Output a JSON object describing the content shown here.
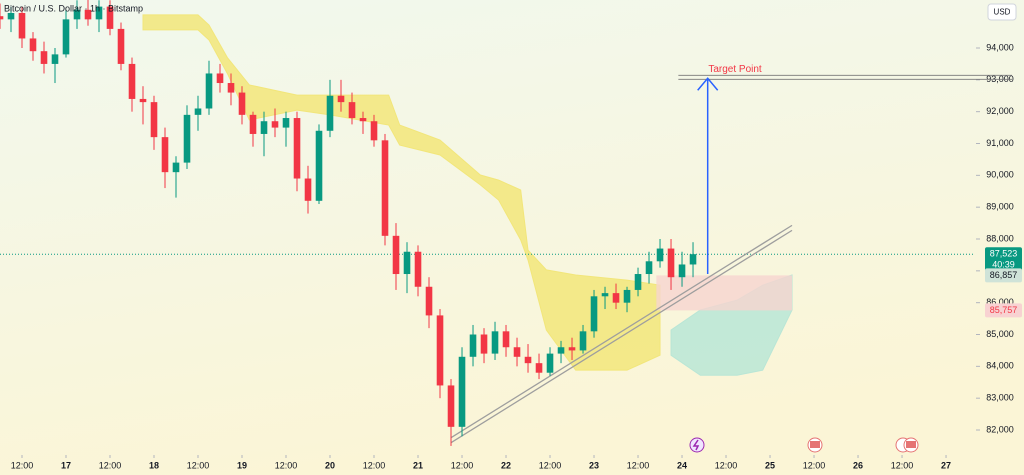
{
  "chart_data": {
    "type": "candlestick",
    "title": "Bitcoin / U.S. Dollar · 1h · Bitstamp",
    "currency": "USD",
    "xlim": [
      6,
      271.9
    ],
    "xticks": [
      {
        "value": 12,
        "label": "12:00"
      },
      {
        "value": 24,
        "label": "17"
      },
      {
        "value": 36,
        "label": "12:00"
      },
      {
        "value": 48,
        "label": "18"
      },
      {
        "value": 60,
        "label": "12:00"
      },
      {
        "value": 72,
        "label": "19"
      },
      {
        "value": 84,
        "label": "12:00"
      },
      {
        "value": 96,
        "label": "20"
      },
      {
        "value": 108,
        "label": "12:00"
      },
      {
        "value": 120,
        "label": "21"
      },
      {
        "value": 132,
        "label": "12:00"
      },
      {
        "value": 144,
        "label": "22"
      },
      {
        "value": 156,
        "label": "12:00"
      },
      {
        "value": 168,
        "label": "23"
      },
      {
        "value": 180,
        "label": "12:00"
      },
      {
        "value": 192,
        "label": "24"
      },
      {
        "value": 204,
        "label": "12:00"
      },
      {
        "value": 216,
        "label": "25"
      },
      {
        "value": 228,
        "label": "12:00"
      },
      {
        "value": 240,
        "label": "26"
      },
      {
        "value": 252,
        "label": "12:00"
      },
      {
        "value": 264,
        "label": "27"
      }
    ],
    "ylim": [
      81215,
      95508
    ],
    "yticks": [
      {
        "value": 82000,
        "label": "82,000"
      },
      {
        "value": 83000,
        "label": "83,000"
      },
      {
        "value": 84000,
        "label": "84,000"
      },
      {
        "value": 85000,
        "label": "85,000"
      },
      {
        "value": 86000,
        "label": "86,000"
      },
      {
        "value": 87000,
        "label": "87,000"
      },
      {
        "value": 88000,
        "label": "88,000"
      },
      {
        "value": 89000,
        "label": "89,000"
      },
      {
        "value": 90000,
        "label": "90,000"
      },
      {
        "value": 91000,
        "label": "91,000"
      },
      {
        "value": 92000,
        "label": "92,000"
      },
      {
        "value": 93000,
        "label": "93,000"
      },
      {
        "value": 94000,
        "label": "94,000"
      }
    ],
    "up_color": "#089981",
    "down_color": "#f23645",
    "candles": {
      "x": [
        6,
        9,
        12,
        15,
        18,
        21,
        24,
        27,
        30,
        33,
        36,
        39,
        42,
        45,
        48,
        51,
        54,
        57,
        60,
        63,
        66,
        69,
        72,
        75,
        78,
        81,
        84,
        87,
        90,
        93,
        96,
        99,
        102,
        105,
        108,
        111,
        114,
        117,
        120,
        123,
        126,
        129,
        132,
        135,
        138,
        141,
        144,
        147,
        150,
        153,
        156,
        159,
        162,
        165,
        168,
        171,
        174,
        177,
        180,
        183,
        186,
        189,
        192,
        195
      ],
      "open": [
        95000,
        94900,
        95100,
        94300,
        93900,
        93500,
        93800,
        94900,
        95200,
        94900,
        95300,
        94600,
        93500,
        92400,
        92300,
        91200,
        90100,
        90400,
        91900,
        92100,
        93200,
        92900,
        92600,
        91900,
        91300,
        91700,
        91500,
        91800,
        89900,
        89200,
        91400,
        92500,
        92300,
        91800,
        91700,
        91100,
        88100,
        86900,
        87600,
        86500,
        85600,
        83400,
        82100,
        84300,
        85000,
        84400,
        85100,
        84600,
        84300,
        84100,
        83800,
        84400,
        84600,
        84500,
        85100,
        86200,
        86300,
        86000,
        86400,
        86900,
        87300,
        87700,
        86800,
        87200
      ],
      "high": [
        95400,
        95300,
        95300,
        94500,
        94200,
        94000,
        95200,
        95500,
        95600,
        95500,
        95500,
        94800,
        93700,
        92800,
        92500,
        91500,
        90600,
        92200,
        92500,
        93600,
        93500,
        93200,
        92800,
        92000,
        92000,
        92100,
        92000,
        92000,
        90300,
        91600,
        93000,
        93000,
        92600,
        92000,
        91900,
        91300,
        88500,
        87900,
        87800,
        86800,
        85800,
        83600,
        84600,
        85300,
        85200,
        85400,
        85300,
        84900,
        84700,
        84400,
        84600,
        84800,
        84900,
        85300,
        86400,
        86500,
        86600,
        86500,
        87100,
        87600,
        88000,
        88000,
        87600,
        87900
      ],
      "low": [
        94600,
        94500,
        94000,
        93600,
        93200,
        92900,
        93700,
        94600,
        94700,
        94500,
        94400,
        93300,
        92000,
        91600,
        90800,
        89600,
        89300,
        90200,
        91400,
        91900,
        92600,
        92200,
        91600,
        90900,
        90600,
        91200,
        90900,
        89500,
        88800,
        89100,
        91200,
        92000,
        91600,
        91300,
        90900,
        87800,
        86400,
        86300,
        86200,
        85200,
        83000,
        81500,
        81800,
        84000,
        84100,
        84200,
        84300,
        84000,
        83800,
        83600,
        83700,
        84100,
        84200,
        84400,
        84900,
        85800,
        85800,
        85700,
        86200,
        86600,
        87100,
        86400,
        86500,
        86800
      ],
      "close": [
        94900,
        95100,
        94300,
        93900,
        93500,
        93800,
        94900,
        95200,
        94900,
        95300,
        94600,
        93500,
        92400,
        92300,
        91200,
        90100,
        90400,
        91900,
        92100,
        93200,
        92900,
        92600,
        91900,
        91300,
        91700,
        91500,
        91800,
        89900,
        89200,
        91400,
        92500,
        92300,
        91800,
        91700,
        91100,
        88100,
        86900,
        87600,
        86500,
        85600,
        83400,
        82100,
        84300,
        85000,
        84400,
        85100,
        84600,
        84300,
        84100,
        83800,
        84400,
        84600,
        84500,
        85100,
        86200,
        86300,
        86000,
        86400,
        86900,
        87300,
        87700,
        86800,
        87200,
        87523
      ]
    },
    "cloud": [
      {
        "color": "#f2e67a",
        "x": [
          45,
          60,
          63,
          68,
          74,
          87,
          96,
          112,
          115,
          126,
          137,
          142,
          148,
          150,
          155,
          163,
          177,
          186
        ],
        "upper": [
          95040,
          95040,
          94720,
          93700,
          92840,
          92520,
          92520,
          92520,
          91580,
          91110,
          90010,
          89850,
          89540,
          87650,
          87030,
          86870,
          86710,
          86550
        ],
        "lower": [
          94570,
          94570,
          94250,
          93200,
          91740,
          92050,
          91900,
          91580,
          90950,
          90640,
          89700,
          89220,
          87970,
          87340,
          85140,
          83880,
          83880,
          84350
        ]
      },
      {
        "color": "#b9e6d6",
        "x": [
          189,
          197,
          207,
          214,
          222
        ],
        "upper": [
          85140,
          85770,
          86080,
          86550,
          86870
        ],
        "lower": [
          84350,
          83720,
          83720,
          83880,
          85770
        ]
      }
    ],
    "trendline": {
      "x": [
        129,
        222
      ],
      "y": [
        81680,
        88350
      ],
      "color": "#9e9e9e"
    },
    "target": {
      "label": "Target Point",
      "value": 93080,
      "x": 191,
      "color": "#f23645"
    },
    "arrow": {
      "x": 199,
      "from": 86900,
      "to": 93050,
      "color": "#2962ff"
    },
    "price_labels": [
      {
        "value": 87523,
        "label": "87,523",
        "color": "#089981",
        "text_color": "#ffffff"
      },
      {
        "value": 86857,
        "label": "86,857",
        "color": "#cfe3d8",
        "text_color": "#131722"
      },
      {
        "value": 85757,
        "label": "85,757",
        "color": "#f8d2d2",
        "text_color": "#f23645"
      }
    ],
    "countdown": "40:39",
    "zone": {
      "x": [
        185,
        222
      ],
      "color": "#f6d4d0"
    }
  }
}
